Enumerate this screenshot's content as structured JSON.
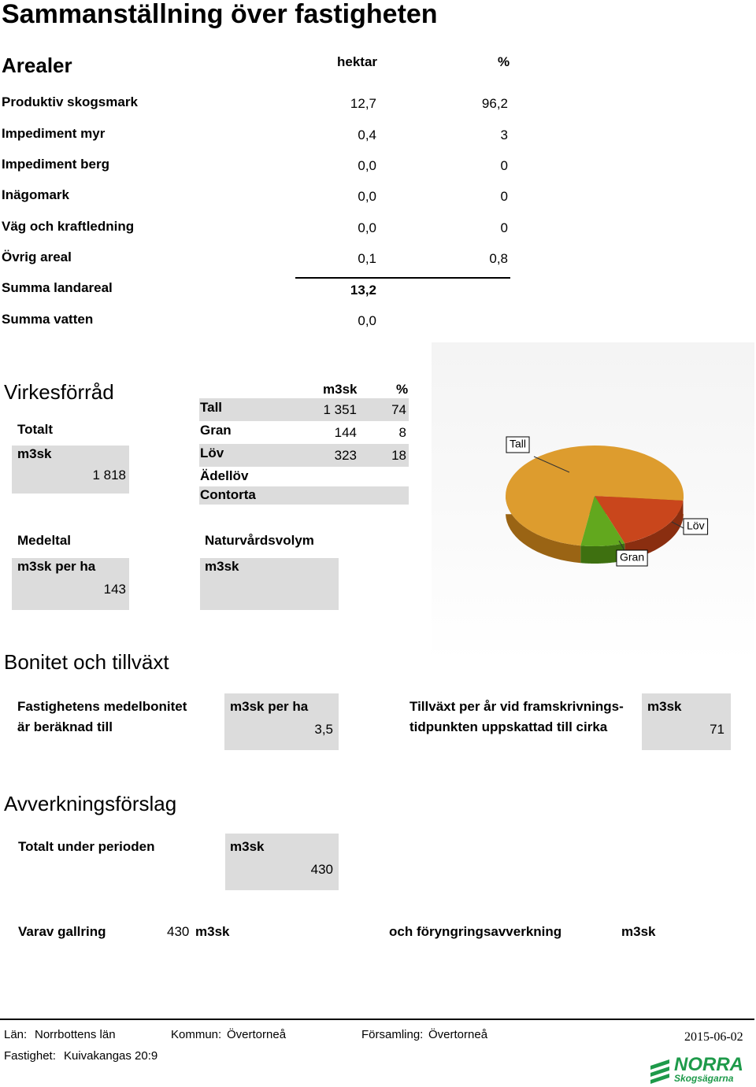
{
  "title": "Sammanställning över fastigheten",
  "arealer": {
    "heading": "Arealer",
    "col_hektar": "hektar",
    "col_pct": "%",
    "rows": [
      {
        "label": "Produktiv skogsmark",
        "hektar": "12,7",
        "pct": "96,2"
      },
      {
        "label": "Impediment myr",
        "hektar": "0,4",
        "pct": "3"
      },
      {
        "label": "Impediment berg",
        "hektar": "0,0",
        "pct": "0"
      },
      {
        "label": "Inägomark",
        "hektar": "0,0",
        "pct": "0"
      },
      {
        "label": "Väg och kraftledning",
        "hektar": "0,0",
        "pct": "0"
      },
      {
        "label": "Övrig areal",
        "hektar": "0,1",
        "pct": "0,8"
      }
    ],
    "summa_landareal": {
      "label": "Summa landareal",
      "hektar": "13,2"
    },
    "summa_vatten": {
      "label": "Summa vatten",
      "hektar": "0,0"
    }
  },
  "virkesforrad": {
    "heading": "Virkesförråd",
    "col_m3sk": "m3sk",
    "col_pct": "%",
    "totalt_label": "Totalt",
    "totalt_unit": "m3sk",
    "totalt_value": "1 818",
    "species": [
      {
        "name": "Tall",
        "m3sk": "1 351",
        "pct": 74
      },
      {
        "name": "Gran",
        "m3sk": "144",
        "pct": 8
      },
      {
        "name": "Löv",
        "m3sk": "323",
        "pct": 18
      },
      {
        "name": "Ädellöv"
      },
      {
        "name": "Contorta"
      }
    ],
    "medeltal_label": "Medeltal",
    "medeltal_unit": "m3sk per ha",
    "medeltal_value": "143",
    "natur_label": "Naturvårdsvolym",
    "natur_unit": "m3sk"
  },
  "bonitet": {
    "heading": "Bonitet och tillväxt",
    "bonitet_line1": "Fastighetens medelbonitet",
    "bonitet_line2": "är beräknad till",
    "bonitet_unit": "m3sk per ha",
    "bonitet_value": "3,5",
    "tillvaxt_line1": "Tillväxt per år vid framskrivnings-",
    "tillvaxt_line2": "tidpunkten uppskattad till cirka",
    "tillvaxt_unit": "m3sk",
    "tillvaxt_value": "71"
  },
  "avverkning": {
    "heading": "Avverkningsförslag",
    "totalt_label": "Totalt under perioden",
    "totalt_unit": "m3sk",
    "totalt_value": "430",
    "gallring_label": "Varav gallring",
    "gallring_value": "430",
    "gallring_unit": "m3sk",
    "foryngring_label": "och föryngringsavverkning",
    "foryngring_unit": "m3sk"
  },
  "footer": {
    "lan_label": "Län:",
    "lan": "Norrbottens län",
    "kommun_label": "Kommun:",
    "kommun": "Övertorneå",
    "forsamling_label": "Församling:",
    "forsamling": "Övertorneå",
    "date": "2015-06-02",
    "fastighet_label": "Fastighet:",
    "fastighet": "Kuivakangas 20:9"
  },
  "logo": {
    "line1": "NORRA",
    "line2": "Skogsägarna"
  }
}
